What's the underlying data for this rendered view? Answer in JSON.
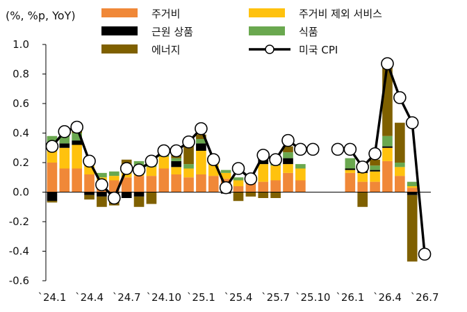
{
  "chart_data": {
    "type": "bar",
    "unit_label": "(%, %p, YoY)",
    "ylim": [
      -0.6,
      1.0
    ],
    "y_ticks": [
      -0.6,
      -0.4,
      -0.2,
      0.0,
      0.2,
      0.4,
      0.6,
      0.8,
      1.0
    ],
    "y_tick_labels": [
      "-0.6",
      "-0.4",
      "-0.2",
      "0.0",
      "0.2",
      "0.4",
      "0.6",
      "0.8",
      "1.0"
    ],
    "x_ticks": [
      {
        "index": 0,
        "label": "`24.1"
      },
      {
        "index": 3,
        "label": "`24.4"
      },
      {
        "index": 6,
        "label": "`24.7"
      },
      {
        "index": 9,
        "label": "`24.10"
      },
      {
        "index": 12,
        "label": "`25.1"
      },
      {
        "index": 15,
        "label": "`25.4"
      },
      {
        "index": 18,
        "label": "`25.7"
      },
      {
        "index": 21,
        "label": "`25.10"
      },
      {
        "index": 24,
        "label": "`26.1"
      },
      {
        "index": 27,
        "label": "`26.4"
      },
      {
        "index": 30,
        "label": "`26.7"
      }
    ],
    "months": [
      "24.1",
      "24.2",
      "24.3",
      "24.4",
      "24.5",
      "24.6",
      "24.7",
      "24.8",
      "24.9",
      "24.10",
      "24.11",
      "24.12",
      "25.1",
      "25.2",
      "25.3",
      "25.4",
      "25.5",
      "25.6",
      "25.7",
      "25.8",
      "25.9",
      "25.10",
      "25.11",
      "25.12",
      "26.1",
      "26.2",
      "26.3",
      "26.4",
      "26.5",
      "26.6",
      "26.7"
    ],
    "series": [
      {
        "name": "주거비",
        "color": "#f08838",
        "values": [
          0.2,
          0.16,
          0.16,
          0.12,
          0.06,
          0.08,
          0.1,
          0.11,
          0.11,
          0.16,
          0.12,
          0.1,
          0.12,
          0.11,
          0.09,
          0.04,
          0.06,
          0.07,
          0.08,
          0.13,
          0.08,
          null,
          null,
          null,
          0.13,
          0.07,
          0.07,
          0.21,
          0.11,
          0.03,
          null
        ]
      },
      {
        "name": "주거비 제외 서비스",
        "color": "#ffc20e",
        "values": [
          0.13,
          0.14,
          0.16,
          0.08,
          0.04,
          0.03,
          0.06,
          0.07,
          0.06,
          0.08,
          0.05,
          0.06,
          0.16,
          0.09,
          0.04,
          0.04,
          0.05,
          0.12,
          0.1,
          0.06,
          0.08,
          null,
          null,
          null,
          0.02,
          0.06,
          0.07,
          0.09,
          0.06,
          0.01,
          null
        ]
      },
      {
        "name": "근원 상품",
        "color": "#000000",
        "values": [
          -0.06,
          0.03,
          0.03,
          -0.02,
          -0.03,
          -0.01,
          -0.04,
          -0.03,
          0.0,
          0.0,
          0.04,
          0.0,
          0.05,
          0.0,
          -0.01,
          0.0,
          0.0,
          0.04,
          0.0,
          0.04,
          0.0,
          null,
          null,
          null,
          0.01,
          0.02,
          0.01,
          0.01,
          0.0,
          -0.02,
          null
        ]
      },
      {
        "name": "식품",
        "color": "#6aa84f",
        "values": [
          0.05,
          0.06,
          0.05,
          0.03,
          0.03,
          0.03,
          0.02,
          0.03,
          0.03,
          0.04,
          0.02,
          0.03,
          0.03,
          0.02,
          0.02,
          0.02,
          0.01,
          0.03,
          0.03,
          0.04,
          0.03,
          null,
          null,
          null,
          0.07,
          0.02,
          0.03,
          0.07,
          0.03,
          0.03,
          null
        ]
      },
      {
        "name": "에너지",
        "color": "#7f6000",
        "values": [
          -0.01,
          0.02,
          0.07,
          -0.03,
          -0.07,
          -0.08,
          0.04,
          -0.07,
          -0.08,
          0.02,
          0.04,
          0.14,
          0.03,
          0.0,
          0.0,
          -0.06,
          -0.03,
          -0.04,
          -0.04,
          0.04,
          0.0,
          null,
          null,
          null,
          0.0,
          -0.1,
          0.04,
          0.48,
          0.27,
          -0.45,
          null
        ]
      }
    ],
    "line": {
      "name": "미국 CPI",
      "color": "#000000",
      "values": [
        0.31,
        0.41,
        0.44,
        0.21,
        0.05,
        -0.04,
        0.16,
        0.15,
        0.21,
        0.28,
        0.28,
        0.34,
        0.43,
        0.22,
        0.03,
        0.16,
        0.09,
        0.25,
        0.22,
        0.35,
        0.29,
        0.29,
        null,
        0.29,
        0.29,
        0.17,
        0.26,
        0.87,
        0.64,
        0.47,
        -0.42
      ]
    },
    "legend": {
      "placement": "top-center",
      "items": [
        {
          "label": "주거비",
          "color": "#f08838",
          "kind": "swatch"
        },
        {
          "label": "주거비 제외 서비스",
          "color": "#ffc20e",
          "kind": "swatch"
        },
        {
          "label": "근원 상품",
          "color": "#000000",
          "kind": "swatch"
        },
        {
          "label": "식품",
          "color": "#6aa84f",
          "kind": "swatch"
        },
        {
          "label": "에너지",
          "color": "#7f6000",
          "kind": "swatch"
        },
        {
          "label": "미국 CPI",
          "color": "#000000",
          "kind": "line-marker"
        }
      ]
    },
    "grid": false
  }
}
